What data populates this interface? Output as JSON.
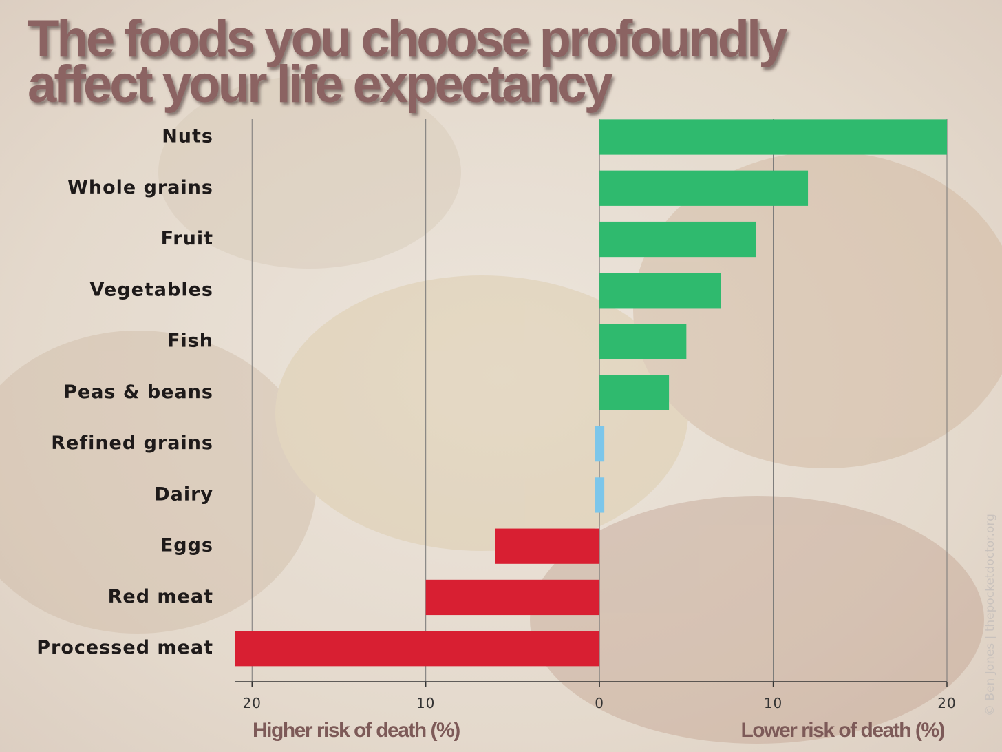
{
  "chart_data": {
    "type": "bar",
    "orientation": "horizontal",
    "title": "The foods you choose profoundly affect your life expectancy",
    "categories": [
      "Nuts",
      "Whole grains",
      "Fruit",
      "Vegetables",
      "Fish",
      "Peas & beans",
      "Refined grains",
      "Dairy",
      "Eggs",
      "Red meat",
      "Processed meat"
    ],
    "values": [
      20,
      12,
      9,
      7,
      5,
      4,
      0,
      0,
      -6,
      -10,
      -21
    ],
    "colors": [
      "#2fba6e",
      "#2fba6e",
      "#2fba6e",
      "#2fba6e",
      "#2fba6e",
      "#2fba6e",
      "#7cc6ea",
      "#7cc6ea",
      "#d81f32",
      "#d81f32",
      "#d81f32"
    ],
    "xlim": [
      -21,
      20
    ],
    "xticks": [
      {
        "value": -20,
        "label": "20"
      },
      {
        "value": -10,
        "label": "10"
      },
      0,
      10,
      20
    ],
    "xlabel_left": "Higher risk of death (%)",
    "xlabel_right": "Lower risk of death (%)",
    "credit": "© Ben Jones | thepocketdoctor.org",
    "grid": true
  }
}
